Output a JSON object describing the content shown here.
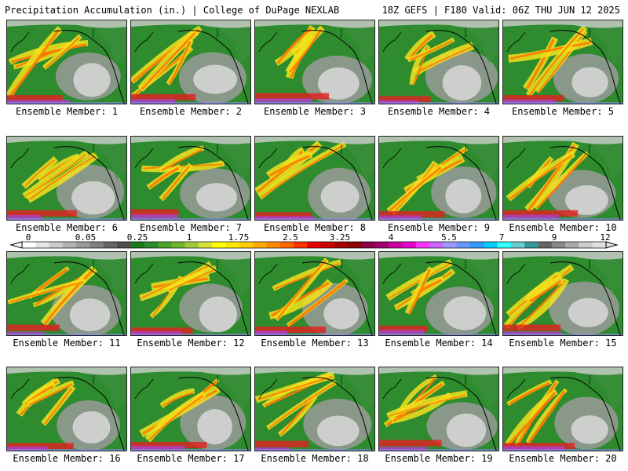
{
  "header": {
    "left_title": "Precipitation Accumulation (in.) | College of DuPage NEXLAB",
    "right_title": "18Z GEFS | F180 Valid: 06Z THU JUN 12 2025"
  },
  "panels": [
    {
      "label": "Ensemble Member: 1"
    },
    {
      "label": "Ensemble Member: 2"
    },
    {
      "label": "Ensemble Member: 3"
    },
    {
      "label": "Ensemble Member: 4"
    },
    {
      "label": "Ensemble Member: 5"
    },
    {
      "label": "Ensemble Member: 6"
    },
    {
      "label": "Ensemble Member: 7"
    },
    {
      "label": "Ensemble Member: 8"
    },
    {
      "label": "Ensemble Member: 9"
    },
    {
      "label": "Ensemble Member: 10"
    },
    {
      "label": "Ensemble Member: 11"
    },
    {
      "label": "Ensemble Member: 12"
    },
    {
      "label": "Ensemble Member: 13"
    },
    {
      "label": "Ensemble Member: 14"
    },
    {
      "label": "Ensemble Member: 15"
    },
    {
      "label": "Ensemble Member: 16"
    },
    {
      "label": "Ensemble Member: 17"
    },
    {
      "label": "Ensemble Member: 18"
    },
    {
      "label": "Ensemble Member: 19"
    },
    {
      "label": "Ensemble Member: 20"
    }
  ],
  "legend": {
    "tick_labels": [
      "0",
      "0.05",
      "0.25",
      "1",
      "1.75",
      "2.5",
      "3.25",
      "4",
      "5.5",
      "7",
      "9",
      "12"
    ],
    "colors": [
      "#ffffff",
      "#e6e6e6",
      "#cccccc",
      "#b3b3b3",
      "#999999",
      "#808080",
      "#666666",
      "#4d4d4d",
      "#1a7a1a",
      "#2e8b2e",
      "#4ba32c",
      "#72b52c",
      "#a4c93a",
      "#d4e23c",
      "#ffff00",
      "#ffe600",
      "#ffcc00",
      "#ffaa00",
      "#ff8800",
      "#ff6600",
      "#ff3300",
      "#e60000",
      "#cc0000",
      "#a30000",
      "#8b0000",
      "#8b0046",
      "#a0006e",
      "#c8009b",
      "#e600cc",
      "#ff33ff",
      "#cc66ff",
      "#9999ff",
      "#6699ff",
      "#3399ff",
      "#00ccff",
      "#33ffff",
      "#66cccc",
      "#339999",
      "#666666",
      "#888888",
      "#aaaaaa",
      "#cccccc",
      "#e0e0e0"
    ]
  }
}
